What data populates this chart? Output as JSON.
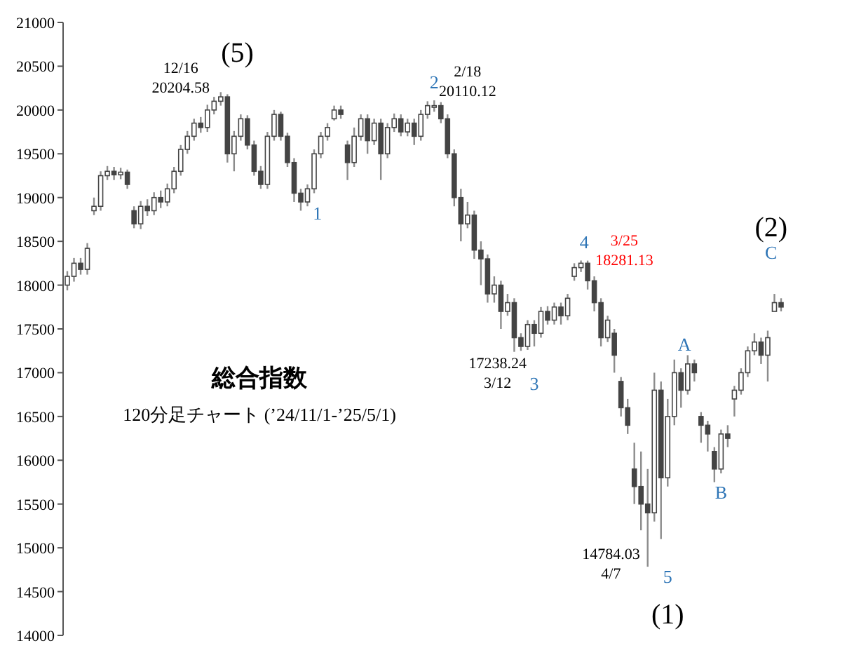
{
  "chart_data": {
    "type": "candlestick",
    "title": "総合指数",
    "subtitle": "120分足チャート (’24/11/1-’25/5/1)",
    "annotations": [
      "12/16\n20204.58",
      "(5)",
      "1",
      "2",
      "2/18\n20110.12",
      "17238.24\n3/12",
      "3",
      "4",
      "3/25\n18281.13",
      "A",
      "B",
      "5",
      "14784.03\n4/7",
      "(1)",
      "(2)",
      "C"
    ],
    "categories": [
      null,
      null,
      null,
      null,
      null,
      null,
      null,
      null,
      null,
      null,
      null,
      null,
      null,
      null,
      null,
      null,
      null,
      null,
      null,
      null,
      null,
      null,
      null,
      null,
      null,
      null,
      null,
      null,
      null,
      null,
      null,
      null,
      null,
      null,
      null,
      null,
      null,
      null,
      null,
      null,
      null,
      null,
      null,
      null,
      null,
      null,
      null,
      null,
      null,
      null,
      null,
      null,
      null,
      null,
      null,
      null,
      null,
      null,
      null,
      null,
      null,
      null,
      null,
      null,
      null,
      null,
      null,
      null,
      null,
      null,
      null,
      null,
      null,
      null,
      null,
      null,
      null,
      null,
      null,
      null,
      null,
      null,
      null,
      null,
      null,
      null,
      null,
      null,
      null,
      null,
      null,
      null,
      null,
      null,
      null,
      null,
      null,
      null,
      null,
      null,
      null,
      null,
      null,
      null,
      null,
      null,
      null,
      null
    ],
    "ohlc": [
      [
        18000,
        18160,
        17940,
        18100
      ],
      [
        18100,
        18310,
        18040,
        18250
      ],
      [
        18250,
        18310,
        18120,
        18180
      ],
      [
        18180,
        18480,
        18120,
        18420
      ],
      [
        18850,
        19000,
        18800,
        18900
      ],
      [
        18900,
        19300,
        18850,
        19250
      ],
      [
        19250,
        19360,
        19200,
        19300
      ],
      [
        19300,
        19350,
        19200,
        19260
      ],
      [
        19260,
        19340,
        19210,
        19290
      ],
      [
        19290,
        19320,
        19100,
        19150
      ],
      [
        18850,
        18900,
        18650,
        18700
      ],
      [
        18700,
        18960,
        18640,
        18900
      ],
      [
        18900,
        18980,
        18790,
        18850
      ],
      [
        18850,
        19060,
        18800,
        19000
      ],
      [
        19000,
        19080,
        18880,
        18950
      ],
      [
        18950,
        19160,
        18900,
        19100
      ],
      [
        19100,
        19350,
        19050,
        19300
      ],
      [
        19300,
        19600,
        19250,
        19550
      ],
      [
        19550,
        19760,
        19500,
        19700
      ],
      [
        19700,
        19900,
        19650,
        19850
      ],
      [
        19850,
        19920,
        19740,
        19800
      ],
      [
        19800,
        20060,
        19750,
        20000
      ],
      [
        20000,
        20150,
        19950,
        20100
      ],
      [
        20100,
        20204.58,
        20050,
        20150
      ],
      [
        20150,
        20180,
        19400,
        19500
      ],
      [
        19500,
        19760,
        19300,
        19700
      ],
      [
        19700,
        19950,
        19650,
        19900
      ],
      [
        19900,
        19940,
        19550,
        19600
      ],
      [
        19600,
        19650,
        19250,
        19300
      ],
      [
        19300,
        19360,
        19100,
        19150
      ],
      [
        19150,
        19750,
        19100,
        19700
      ],
      [
        19700,
        20000,
        19650,
        19950
      ],
      [
        19950,
        19980,
        19650,
        19700
      ],
      [
        19700,
        19740,
        19350,
        19400
      ],
      [
        19400,
        19450,
        18950,
        19050
      ],
      [
        19050,
        19100,
        18850,
        18950
      ],
      [
        18950,
        19150,
        18900,
        19100
      ],
      [
        19100,
        19550,
        19050,
        19500
      ],
      [
        19500,
        19750,
        19450,
        19700
      ],
      [
        19700,
        19850,
        19650,
        19800
      ],
      [
        19900,
        20050,
        19880,
        20000
      ],
      [
        20000,
        20050,
        19900,
        19950
      ],
      [
        19600,
        19650,
        19200,
        19400
      ],
      [
        19400,
        19800,
        19350,
        19700
      ],
      [
        19700,
        19950,
        19650,
        19900
      ],
      [
        19900,
        19950,
        19500,
        19650
      ],
      [
        19650,
        19900,
        19600,
        19850
      ],
      [
        19850,
        19900,
        19200,
        19500
      ],
      [
        19500,
        19850,
        19450,
        19800
      ],
      [
        19800,
        19960,
        19750,
        19900
      ],
      [
        19900,
        19950,
        19700,
        19750
      ],
      [
        19750,
        19900,
        19700,
        19850
      ],
      [
        19850,
        19900,
        19600,
        19700
      ],
      [
        19700,
        20000,
        19650,
        19950
      ],
      [
        19950,
        20100,
        19900,
        20050
      ],
      [
        20050,
        20110.12,
        19980,
        20050
      ],
      [
        20050,
        20090,
        19850,
        19900
      ],
      [
        19900,
        19950,
        19450,
        19500
      ],
      [
        19500,
        19550,
        18900,
        19000
      ],
      [
        19000,
        19100,
        18500,
        18700
      ],
      [
        18700,
        18950,
        18650,
        18800
      ],
      [
        18800,
        18850,
        18300,
        18400
      ],
      [
        18400,
        18500,
        18000,
        18300
      ],
      [
        18300,
        18350,
        17800,
        17900
      ],
      [
        17900,
        18100,
        17800,
        18000
      ],
      [
        18000,
        18050,
        17500,
        17700
      ],
      [
        17700,
        17900,
        17650,
        17800
      ],
      [
        17800,
        17850,
        17238.24,
        17400
      ],
      [
        17400,
        17450,
        17250,
        17300
      ],
      [
        17300,
        17600,
        17260,
        17550
      ],
      [
        17550,
        17600,
        17300,
        17450
      ],
      [
        17450,
        17750,
        17400,
        17700
      ],
      [
        17700,
        17760,
        17550,
        17600
      ],
      [
        17600,
        17800,
        17550,
        17750
      ],
      [
        17750,
        17800,
        17550,
        17650
      ],
      [
        17650,
        17900,
        17600,
        17850
      ],
      [
        18100,
        18250,
        18050,
        18200
      ],
      [
        18200,
        18281.13,
        18150,
        18250
      ],
      [
        18250,
        18280,
        17950,
        18050
      ],
      [
        18050,
        18100,
        17700,
        17800
      ],
      [
        17800,
        17850,
        17300,
        17400
      ],
      [
        17400,
        17650,
        17350,
        17600
      ],
      [
        17450,
        17500,
        17000,
        17200
      ],
      [
        16900,
        16950,
        16500,
        16600
      ],
      [
        16600,
        16700,
        16300,
        16400
      ],
      [
        15900,
        16200,
        15500,
        15700
      ],
      [
        15700,
        16100,
        15200,
        15500
      ],
      [
        15500,
        15900,
        14784.03,
        15400
      ],
      [
        15400,
        17000,
        15300,
        16800
      ],
      [
        16800,
        16900,
        15100,
        15800
      ],
      [
        15800,
        16700,
        15700,
        16500
      ],
      [
        16500,
        17150,
        16400,
        17000
      ],
      [
        17000,
        17050,
        16600,
        16800
      ],
      [
        16800,
        17200,
        16750,
        17100
      ],
      [
        17100,
        17150,
        16900,
        17000
      ],
      [
        16500,
        16550,
        16200,
        16400
      ],
      [
        16400,
        16450,
        16100,
        16300
      ],
      [
        16100,
        16150,
        15750,
        15900
      ],
      [
        15900,
        16350,
        15850,
        16300
      ],
      [
        16300,
        16400,
        16150,
        16250
      ],
      [
        16700,
        16850,
        16500,
        16800
      ],
      [
        16800,
        17050,
        16750,
        17000
      ],
      [
        17000,
        17300,
        16950,
        17250
      ],
      [
        17250,
        17450,
        17200,
        17350
      ],
      [
        17350,
        17400,
        17100,
        17200
      ],
      [
        17200,
        17480,
        16900,
        17400
      ],
      [
        17700,
        17900,
        17700,
        17800
      ],
      [
        17800,
        17850,
        17700,
        17750
      ]
    ],
    "ylim": [
      14000,
      21000
    ],
    "yticks": [
      14000,
      14500,
      15000,
      15500,
      16000,
      16500,
      17000,
      17500,
      18000,
      18500,
      19000,
      19500,
      20000,
      20500,
      21000
    ],
    "grid": false
  }
}
